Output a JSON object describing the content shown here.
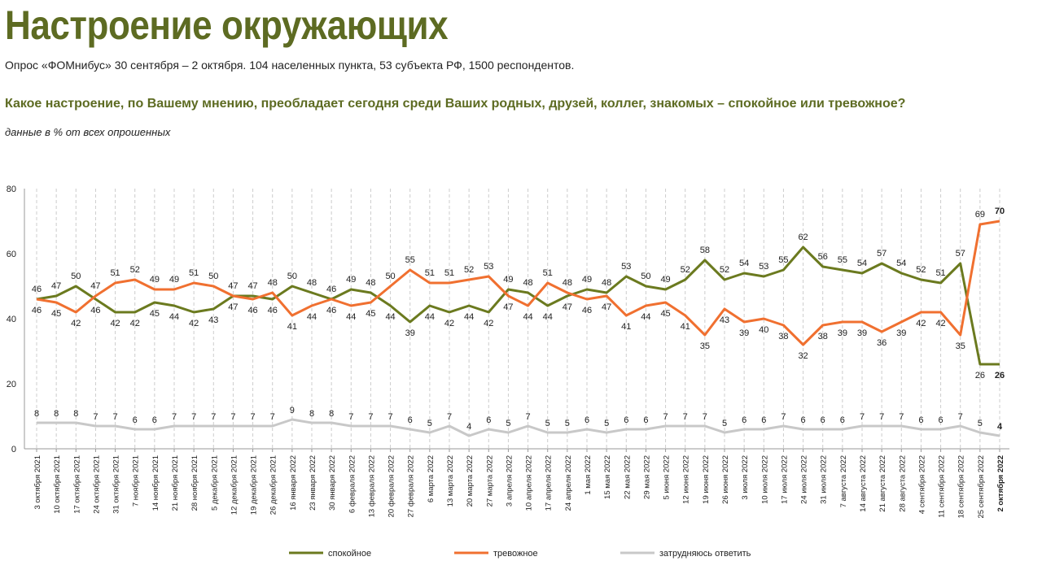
{
  "header": {
    "title": "Настроение окружающих",
    "subtitle": "Опрос «ФОМнибус» 30 сентября – 2 октября. 104 населенных пункта, 53 субъекта РФ, 1500 респондентов.",
    "question": "Какое настроение, по Вашему мнению, преобладает сегодня среди Ваших родных, друзей, коллег, знакомых – спокойное или тревожное?",
    "note": "данные в % от всех опрошенных"
  },
  "chart_data": {
    "type": "line",
    "title": "Настроение окружающих",
    "xlabel": "",
    "ylabel": "",
    "ylim": [
      0,
      80
    ],
    "yticks": [
      "0",
      "20",
      "40",
      "60",
      "80"
    ],
    "grid": "vertical dashed",
    "legend_position": "bottom",
    "categories": [
      "3 октября 2021",
      "10 октября 2021",
      "17 октября 2021",
      "24 октября 2021",
      "31 октября 2021",
      "7 ноября 2021",
      "14 ноября 2021",
      "21 ноября 2021",
      "28 ноября 2021",
      "5 декабря 2021",
      "12 декабря 2021",
      "19 декабря 2021",
      "26 декабря 2021",
      "16 января 2022",
      "23 января 2022",
      "30 января 2022",
      "6 февраля 2022",
      "13 февраля 2022",
      "20 февраля 2022",
      "27 февраля 2022",
      "6 марта 2022",
      "13 марта 2022",
      "20 марта 2022",
      "27 марта 2022",
      "3 апреля 2022",
      "10 апреля 2022",
      "17 апреля 2022",
      "24 апреля 2022",
      "1 мая 2022",
      "15 мая 2022",
      "22 мая 2022",
      "29 мая 2022",
      "5 июня 2022",
      "12 июня 2022",
      "19 июня 2022",
      "26 июня 2022",
      "3 июля 2022",
      "10 июля 2022",
      "17 июля 2022",
      "24 июля 2022",
      "31 июля 2022",
      "7 августа 2022",
      "14 августа 2022",
      "21 августа 2022",
      "28 августа 2022",
      "4 сентября 2022",
      "11 сентября 2022",
      "18 сентября 2022",
      "25 сентября 2022",
      "2 октября 2022"
    ],
    "series": [
      {
        "name": "спокойное",
        "color": "#6b7a1f",
        "values": [
          46,
          47,
          50,
          46,
          42,
          42,
          45,
          44,
          42,
          43,
          47,
          47,
          46,
          50,
          48,
          46,
          49,
          48,
          44,
          39,
          44,
          42,
          44,
          42,
          49,
          48,
          44,
          47,
          49,
          48,
          53,
          50,
          49,
          52,
          58,
          52,
          54,
          53,
          55,
          62,
          56,
          55,
          54,
          57,
          54,
          52,
          51,
          57,
          26,
          26
        ]
      },
      {
        "name": "тревожное",
        "color": "#f07030",
        "values": [
          46,
          45,
          42,
          47,
          51,
          52,
          49,
          49,
          51,
          50,
          47,
          46,
          48,
          41,
          44,
          46,
          44,
          45,
          50,
          55,
          51,
          51,
          52,
          53,
          47,
          44,
          51,
          48,
          46,
          47,
          41,
          44,
          45,
          41,
          35,
          43,
          39,
          40,
          38,
          32,
          38,
          39,
          39,
          36,
          39,
          42,
          42,
          35,
          69,
          70
        ]
      },
      {
        "name": "затрудняюсь ответить",
        "color": "#c8c8c8",
        "values": [
          8,
          8,
          8,
          7,
          7,
          6,
          6,
          7,
          7,
          7,
          7,
          7,
          7,
          9,
          8,
          8,
          7,
          7,
          7,
          6,
          5,
          7,
          4,
          6,
          5,
          7,
          5,
          5,
          6,
          5,
          6,
          6,
          7,
          7,
          7,
          5,
          6,
          6,
          7,
          6,
          6,
          6,
          7,
          7,
          7,
          6,
          6,
          7,
          5,
          4
        ]
      }
    ]
  }
}
